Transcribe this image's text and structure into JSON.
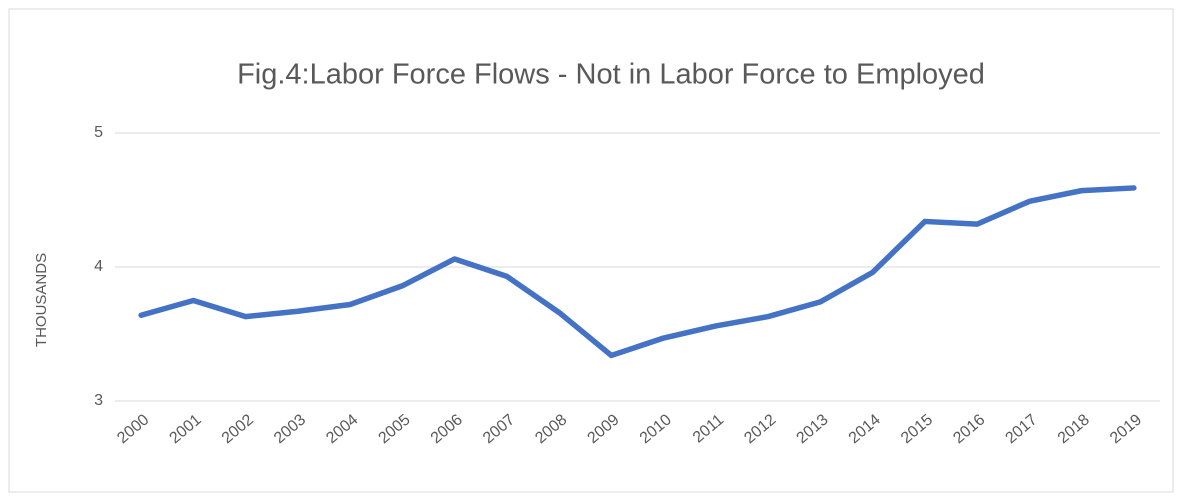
{
  "chart_data": {
    "type": "line",
    "title": "Fig.4:Labor Force Flows - Not in Labor Force to Employed",
    "y_label": "THOUSANDS",
    "categories": [
      "2000",
      "2001",
      "2002",
      "2003",
      "2004",
      "2005",
      "2006",
      "2007",
      "2008",
      "2009",
      "2010",
      "2011",
      "2012",
      "2013",
      "2014",
      "2015",
      "2016",
      "2017",
      "2018",
      "2019"
    ],
    "series": [
      {
        "name": "Not in Labor Force to Employed",
        "color": "#4472c4",
        "values": [
          3.64,
          3.75,
          3.63,
          3.67,
          3.72,
          3.86,
          4.06,
          3.93,
          3.66,
          3.34,
          3.47,
          3.56,
          3.63,
          3.74,
          3.96,
          4.34,
          4.32,
          4.49,
          4.57,
          4.59
        ]
      }
    ],
    "ylim": [
      3,
      5
    ],
    "yticks": [
      3,
      4,
      5
    ],
    "grid": true
  }
}
